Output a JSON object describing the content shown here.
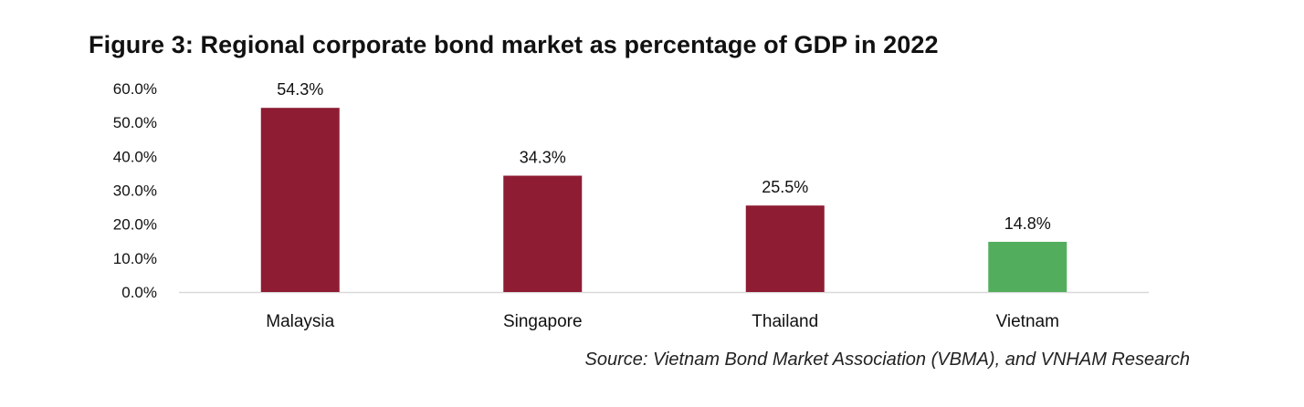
{
  "chart_data": {
    "type": "bar",
    "title": "Figure 3: Regional corporate bond market as percentage of GDP in 2022",
    "categories": [
      "Malaysia",
      "Singapore",
      "Thailand",
      "Vietnam"
    ],
    "values": [
      54.3,
      34.3,
      25.5,
      14.8
    ],
    "data_labels": [
      "54.3%",
      "34.3%",
      "25.5%",
      "14.8%"
    ],
    "bar_colors": [
      "#8e1c33",
      "#8e1c33",
      "#8e1c33",
      "#52ae5c"
    ],
    "y_ticks": [
      0,
      10,
      20,
      30,
      40,
      50,
      60
    ],
    "y_tick_labels": [
      "0.0%",
      "10.0%",
      "20.0%",
      "30.0%",
      "40.0%",
      "50.0%",
      "60.0%"
    ],
    "ylim": [
      0,
      60
    ],
    "xlabel": "",
    "ylabel": "",
    "grid": false,
    "legend": "none"
  },
  "source": "Source: Vietnam Bond Market Association (VBMA), and VNHAM Research"
}
